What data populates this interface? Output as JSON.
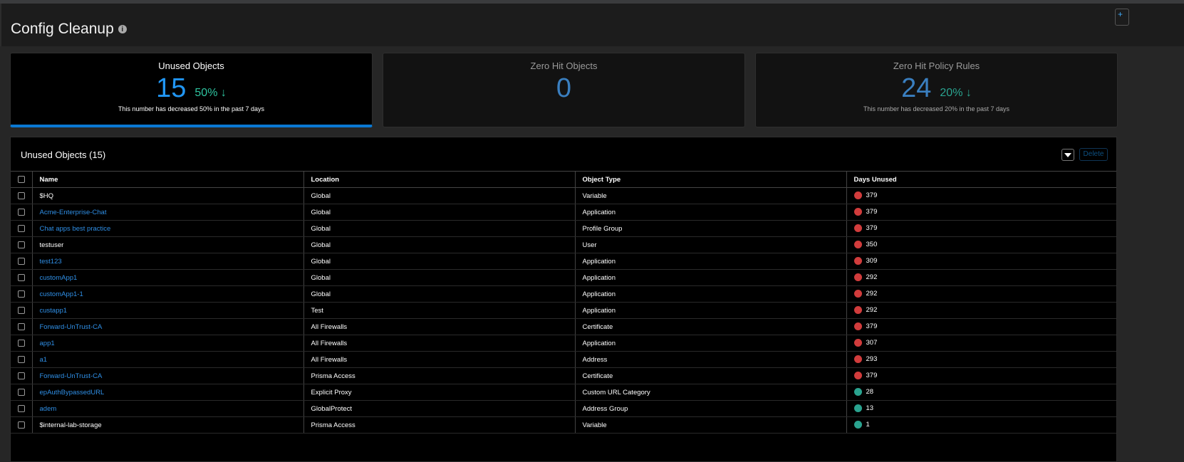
{
  "header": {
    "title": "Config Cleanup",
    "info_icon": "info-circle-icon"
  },
  "cards": [
    {
      "title": "Unused Objects",
      "value": "15",
      "change": "50%",
      "trend": "down",
      "subtitle": "This number has decreased 50% in the past 7 days",
      "active": true
    },
    {
      "title": "Zero Hit Objects",
      "value": "0"
    },
    {
      "title": "Zero Hit Policy Rules",
      "value": "24",
      "change": "20%",
      "trend": "down",
      "subtitle": "This number has decreased 20% in the past 7 days"
    }
  ],
  "table": {
    "title": "Unused Objects (15)",
    "delete_label": "Delete",
    "columns": [
      "Name",
      "Location",
      "Object Type",
      "Days Unused"
    ],
    "status_colors": {
      "red": "#d13c3c",
      "green": "#2aa38f"
    },
    "rows": [
      {
        "name": "$HQ",
        "link": false,
        "location": "Global",
        "type": "Variable",
        "days": "379",
        "status": "red"
      },
      {
        "name": "Acme-Enterprise-Chat",
        "link": true,
        "location": "Global",
        "type": "Application",
        "days": "379",
        "status": "red"
      },
      {
        "name": "Chat apps best practice",
        "link": true,
        "location": "Global",
        "type": "Profile Group",
        "days": "379",
        "status": "red"
      },
      {
        "name": "testuser",
        "link": false,
        "location": "Global",
        "type": "User",
        "days": "350",
        "status": "red"
      },
      {
        "name": "test123",
        "link": true,
        "location": "Global",
        "type": "Application",
        "days": "309",
        "status": "red"
      },
      {
        "name": "customApp1",
        "link": true,
        "location": "Global",
        "type": "Application",
        "days": "292",
        "status": "red"
      },
      {
        "name": "customApp1-1",
        "link": true,
        "location": "Global",
        "type": "Application",
        "days": "292",
        "status": "red"
      },
      {
        "name": "custapp1",
        "link": true,
        "location": "Test",
        "type": "Application",
        "days": "292",
        "status": "red"
      },
      {
        "name": "Forward-UnTrust-CA",
        "link": true,
        "location": "All Firewalls",
        "type": "Certificate",
        "days": "379",
        "status": "red"
      },
      {
        "name": "app1",
        "link": true,
        "location": "All Firewalls",
        "type": "Application",
        "days": "307",
        "status": "red"
      },
      {
        "name": "a1",
        "link": true,
        "location": "All Firewalls",
        "type": "Address",
        "days": "293",
        "status": "red"
      },
      {
        "name": "Forward-UnTrust-CA",
        "link": true,
        "location": "Prisma Access",
        "type": "Certificate",
        "days": "379",
        "status": "red"
      },
      {
        "name": "epAuthBypassedURL",
        "link": true,
        "location": "Explicit Proxy",
        "type": "Custom URL Category",
        "days": "28",
        "status": "green"
      },
      {
        "name": "adem",
        "link": true,
        "location": "GlobalProtect",
        "type": "Address Group",
        "days": "13",
        "status": "green"
      },
      {
        "name": "$internal-lab-storage",
        "link": false,
        "location": "Prisma Access",
        "type": "Variable",
        "days": "1",
        "status": "green"
      }
    ]
  }
}
